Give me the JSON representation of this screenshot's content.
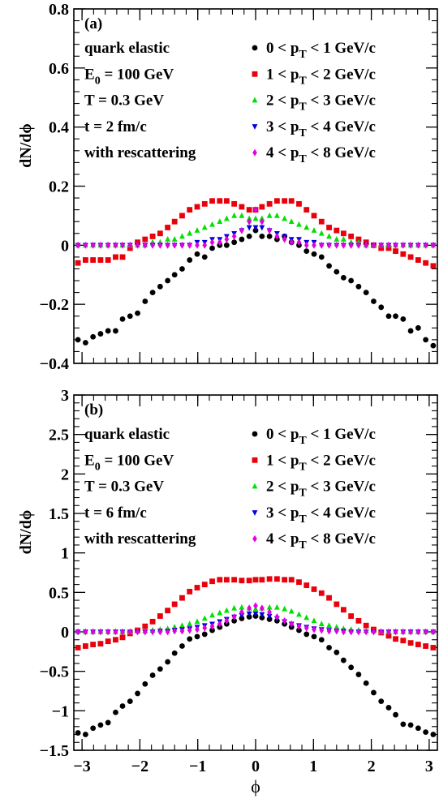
{
  "chart_data": [
    {
      "type": "scatter",
      "panel_label": "(a)",
      "notes": [
        "quark elastic",
        "E0 = 100 GeV",
        "T = 0.3 GeV",
        "t = 2 fm/c",
        "with rescattering"
      ],
      "ylabel": "dN/dϕ",
      "xlabel": "",
      "xlim": [
        -3.1416,
        3.1416
      ],
      "ylim": [
        -0.4,
        0.8
      ],
      "yticks": [
        "−0.4",
        "−0.2",
        "0",
        "0.2",
        "0.4",
        "0.6",
        "0.8"
      ],
      "xticks": [],
      "x": [
        -3.07,
        -2.94,
        -2.81,
        -2.68,
        -2.55,
        -2.42,
        -2.3,
        -2.17,
        -2.04,
        -1.91,
        -1.78,
        -1.65,
        -1.52,
        -1.4,
        -1.27,
        -1.14,
        -1.01,
        -0.88,
        -0.75,
        -0.62,
        -0.5,
        -0.37,
        -0.24,
        -0.11,
        0.0,
        0.11,
        0.24,
        0.37,
        0.5,
        0.62,
        0.75,
        0.88,
        1.01,
        1.14,
        1.27,
        1.4,
        1.52,
        1.65,
        1.78,
        1.91,
        2.04,
        2.17,
        2.3,
        2.42,
        2.55,
        2.68,
        2.81,
        2.94,
        3.07
      ],
      "series": [
        {
          "name": "0 < pT < 1 GeV/c",
          "marker": "circle",
          "color": "#000000",
          "values": [
            -0.32,
            -0.33,
            -0.31,
            -0.3,
            -0.29,
            -0.29,
            -0.25,
            -0.24,
            -0.23,
            -0.19,
            -0.16,
            -0.14,
            -0.12,
            -0.1,
            -0.08,
            -0.05,
            -0.03,
            -0.04,
            -0.01,
            0.0,
            0.0,
            0.01,
            0.02,
            0.03,
            0.05,
            0.03,
            0.03,
            0.02,
            0.03,
            0.01,
            0.0,
            -0.02,
            -0.03,
            -0.04,
            -0.07,
            -0.09,
            -0.11,
            -0.12,
            -0.14,
            -0.16,
            -0.19,
            -0.21,
            -0.24,
            -0.24,
            -0.25,
            -0.29,
            -0.28,
            -0.32,
            -0.34
          ]
        },
        {
          "name": "1 < pT < 2 GeV/c",
          "marker": "square",
          "color": "#e8000b",
          "values": [
            -0.06,
            -0.05,
            -0.05,
            -0.05,
            -0.05,
            -0.04,
            -0.04,
            -0.01,
            0.01,
            0.02,
            0.03,
            0.04,
            0.06,
            0.08,
            0.1,
            0.12,
            0.13,
            0.14,
            0.15,
            0.15,
            0.15,
            0.14,
            0.13,
            0.12,
            0.12,
            0.13,
            0.14,
            0.15,
            0.15,
            0.15,
            0.14,
            0.12,
            0.1,
            0.08,
            0.06,
            0.05,
            0.04,
            0.03,
            0.02,
            0.01,
            0.0,
            -0.01,
            -0.01,
            -0.02,
            -0.03,
            -0.04,
            -0.05,
            -0.06,
            -0.07
          ]
        },
        {
          "name": "2 < pT < 3 GeV/c",
          "marker": "triangle-up",
          "color": "#00e000",
          "values": [
            0.0,
            0.0,
            0.0,
            0.0,
            0.0,
            0.0,
            0.0,
            0.0,
            0.0,
            0.0,
            0.01,
            0.01,
            0.02,
            0.02,
            0.03,
            0.04,
            0.05,
            0.06,
            0.07,
            0.08,
            0.09,
            0.1,
            0.1,
            0.09,
            0.09,
            0.09,
            0.1,
            0.1,
            0.09,
            0.08,
            0.07,
            0.06,
            0.05,
            0.04,
            0.03,
            0.02,
            0.02,
            0.01,
            0.01,
            0.0,
            0.0,
            0.0,
            0.0,
            0.0,
            0.0,
            0.0,
            0.0,
            0.0,
            0.0
          ]
        },
        {
          "name": "3 < pT < 4 GeV/c",
          "marker": "triangle-down",
          "color": "#0000e0",
          "values": [
            0.0,
            0.0,
            0.0,
            0.0,
            0.0,
            0.0,
            0.0,
            0.0,
            0.0,
            0.0,
            0.0,
            0.0,
            0.0,
            0.0,
            0.0,
            0.0,
            0.01,
            0.01,
            0.02,
            0.02,
            0.03,
            0.04,
            0.05,
            0.06,
            0.06,
            0.06,
            0.05,
            0.04,
            0.03,
            0.02,
            0.02,
            0.01,
            0.01,
            0.0,
            0.0,
            0.0,
            0.0,
            0.0,
            0.0,
            0.0,
            0.0,
            0.0,
            0.0,
            0.0,
            0.0,
            0.0,
            0.0,
            0.0,
            0.0
          ]
        },
        {
          "name": "4 < pT < 8 GeV/c",
          "marker": "diamond",
          "color": "#e000e0",
          "values": [
            0.0,
            0.0,
            0.0,
            0.0,
            0.0,
            0.0,
            0.0,
            0.0,
            0.0,
            0.0,
            0.0,
            0.0,
            0.0,
            0.0,
            0.0,
            0.0,
            0.0,
            0.0,
            0.01,
            0.01,
            0.02,
            0.03,
            0.05,
            0.08,
            0.12,
            0.08,
            0.05,
            0.03,
            0.02,
            0.01,
            0.01,
            0.0,
            0.0,
            0.0,
            0.0,
            0.0,
            0.0,
            0.0,
            0.0,
            0.0,
            0.0,
            0.0,
            0.0,
            0.0,
            0.0,
            0.0,
            0.0,
            0.0,
            0.0
          ]
        }
      ]
    },
    {
      "type": "scatter",
      "panel_label": "(b)",
      "notes": [
        "quark elastic",
        "E0 = 100 GeV",
        "T = 0.3 GeV",
        "t = 6 fm/c",
        "with rescattering"
      ],
      "ylabel": "dN/dϕ",
      "xlabel": "ϕ",
      "xlim": [
        -3.1416,
        3.1416
      ],
      "ylim": [
        -1.5,
        3
      ],
      "yticks": [
        "−1.5",
        "−1",
        "−0.5",
        "0",
        "0.5",
        "1",
        "1.5",
        "2",
        "2.5",
        "3"
      ],
      "xticks": [
        "−3",
        "−2",
        "−1",
        "0",
        "1",
        "2",
        "3"
      ],
      "x": [
        -3.07,
        -2.94,
        -2.81,
        -2.68,
        -2.55,
        -2.42,
        -2.3,
        -2.17,
        -2.04,
        -1.91,
        -1.78,
        -1.65,
        -1.52,
        -1.4,
        -1.27,
        -1.14,
        -1.01,
        -0.88,
        -0.75,
        -0.62,
        -0.5,
        -0.37,
        -0.24,
        -0.11,
        0.0,
        0.11,
        0.24,
        0.37,
        0.5,
        0.62,
        0.75,
        0.88,
        1.01,
        1.14,
        1.27,
        1.4,
        1.52,
        1.65,
        1.78,
        1.91,
        2.04,
        2.17,
        2.3,
        2.42,
        2.55,
        2.68,
        2.81,
        2.94,
        3.07
      ],
      "series": [
        {
          "name": "0 < pT < 1 GeV/c",
          "marker": "circle",
          "color": "#000000",
          "values": [
            -1.28,
            -1.3,
            -1.22,
            -1.18,
            -1.15,
            -1.02,
            -0.94,
            -0.88,
            -0.78,
            -0.66,
            -0.55,
            -0.47,
            -0.38,
            -0.27,
            -0.18,
            -0.09,
            -0.06,
            -0.03,
            0.02,
            0.06,
            0.1,
            0.14,
            0.17,
            0.19,
            0.2,
            0.18,
            0.16,
            0.14,
            0.1,
            0.06,
            0.02,
            -0.03,
            -0.06,
            -0.1,
            -0.2,
            -0.26,
            -0.36,
            -0.45,
            -0.54,
            -0.65,
            -0.77,
            -0.88,
            -0.96,
            -1.05,
            -1.17,
            -1.18,
            -1.22,
            -1.27,
            -1.3
          ]
        },
        {
          "name": "1 < pT < 2 GeV/c",
          "marker": "square",
          "color": "#e8000b",
          "values": [
            -0.2,
            -0.18,
            -0.16,
            -0.15,
            -0.12,
            -0.1,
            -0.07,
            -0.02,
            0.02,
            0.07,
            0.13,
            0.2,
            0.27,
            0.35,
            0.43,
            0.51,
            0.56,
            0.6,
            0.64,
            0.66,
            0.66,
            0.66,
            0.65,
            0.65,
            0.66,
            0.66,
            0.67,
            0.67,
            0.66,
            0.66,
            0.63,
            0.59,
            0.54,
            0.49,
            0.43,
            0.35,
            0.28,
            0.2,
            0.14,
            0.08,
            0.03,
            -0.01,
            -0.05,
            -0.09,
            -0.11,
            -0.14,
            -0.16,
            -0.18,
            -0.2
          ]
        },
        {
          "name": "2 < pT < 3 GeV/c",
          "marker": "triangle-up",
          "color": "#00e000",
          "values": [
            0.0,
            0.0,
            0.0,
            0.0,
            0.0,
            0.0,
            0.0,
            0.0,
            0.01,
            0.01,
            0.02,
            0.03,
            0.04,
            0.06,
            0.08,
            0.1,
            0.13,
            0.17,
            0.21,
            0.24,
            0.27,
            0.3,
            0.31,
            0.3,
            0.29,
            0.3,
            0.31,
            0.31,
            0.29,
            0.26,
            0.22,
            0.18,
            0.14,
            0.1,
            0.08,
            0.06,
            0.04,
            0.03,
            0.02,
            0.01,
            0.01,
            0.0,
            0.0,
            0.0,
            0.0,
            0.0,
            0.0,
            0.0,
            0.0
          ]
        },
        {
          "name": "3 < pT < 4 GeV/c",
          "marker": "triangle-down",
          "color": "#0000e0",
          "values": [
            0.0,
            0.0,
            0.0,
            0.0,
            0.0,
            0.0,
            0.0,
            0.0,
            0.0,
            0.0,
            0.0,
            0.01,
            0.01,
            0.02,
            0.03,
            0.04,
            0.06,
            0.08,
            0.1,
            0.13,
            0.16,
            0.19,
            0.21,
            0.23,
            0.23,
            0.22,
            0.2,
            0.17,
            0.13,
            0.1,
            0.08,
            0.06,
            0.04,
            0.03,
            0.02,
            0.01,
            0.01,
            0.0,
            0.0,
            0.0,
            0.0,
            0.0,
            0.0,
            0.0,
            0.0,
            0.0,
            0.0,
            0.0,
            0.0
          ]
        },
        {
          "name": "4 < pT < 8 GeV/c",
          "marker": "diamond",
          "color": "#e000e0",
          "values": [
            0.0,
            0.0,
            0.0,
            0.0,
            0.0,
            0.0,
            0.0,
            0.0,
            0.0,
            0.0,
            0.0,
            0.0,
            0.0,
            0.01,
            0.01,
            0.02,
            0.03,
            0.05,
            0.07,
            0.1,
            0.14,
            0.19,
            0.25,
            0.3,
            0.33,
            0.3,
            0.25,
            0.19,
            0.14,
            0.1,
            0.07,
            0.05,
            0.03,
            0.02,
            0.01,
            0.01,
            0.0,
            0.0,
            0.0,
            0.0,
            0.0,
            0.0,
            0.0,
            0.0,
            0.0,
            0.0,
            0.0,
            0.0,
            0.0
          ]
        }
      ]
    }
  ]
}
